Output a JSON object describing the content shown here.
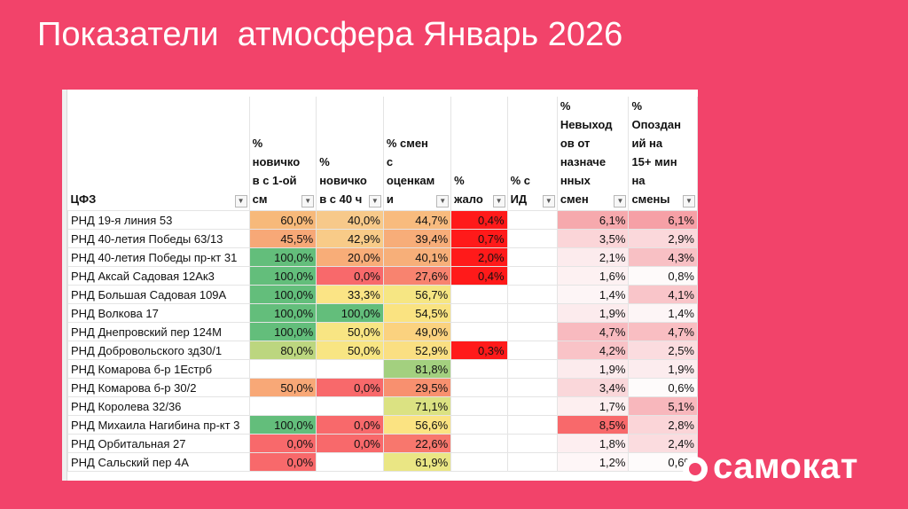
{
  "title": "Показатели  атмосфера Январь 2026",
  "brand": {
    "logo_text": "самокат",
    "bg_color": "#f2436a"
  },
  "table": {
    "headers": [
      "ЦФЗ",
      "% новичко в с 1-ой см",
      "% новичко в с 40 ч",
      "% смен с оценкам и",
      "% жало",
      "% с ИД",
      "% Невыход ов от назначе нных смен",
      "% Опоздан ий на 15+ мин на смены"
    ],
    "rows": [
      {
        "name": "РНД 19-я линия 53",
        "c1": "60,0%",
        "c2": "40,0%",
        "c3": "44,7%",
        "c4": "0,4%",
        "c5": "",
        "c6": "6,1%",
        "c7": "6,1%"
      },
      {
        "name": "РНД 40-летия Победы 63/13",
        "c1": "45,5%",
        "c2": "42,9%",
        "c3": "39,4%",
        "c4": "0,7%",
        "c5": "",
        "c6": "3,5%",
        "c7": "2,9%"
      },
      {
        "name": "РНД 40-летия Победы пр-кт 31",
        "c1": "100,0%",
        "c2": "20,0%",
        "c3": "40,1%",
        "c4": "2,0%",
        "c5": "",
        "c6": "2,1%",
        "c7": "4,3%"
      },
      {
        "name": "РНД Аксай Садовая 12Ак3",
        "c1": "100,0%",
        "c2": "0,0%",
        "c3": "27,6%",
        "c4": "0,4%",
        "c5": "",
        "c6": "1,6%",
        "c7": "0,8%"
      },
      {
        "name": "РНД Большая Садовая 109А",
        "c1": "100,0%",
        "c2": "33,3%",
        "c3": "56,7%",
        "c4": "",
        "c5": "",
        "c6": "1,4%",
        "c7": "4,1%"
      },
      {
        "name": "РНД Волкова 17",
        "c1": "100,0%",
        "c2": "100,0%",
        "c3": "54,5%",
        "c4": "",
        "c5": "",
        "c6": "1,9%",
        "c7": "1,4%"
      },
      {
        "name": "РНД Днепровский пер 124М",
        "c1": "100,0%",
        "c2": "50,0%",
        "c3": "49,0%",
        "c4": "",
        "c5": "",
        "c6": "4,7%",
        "c7": "4,7%"
      },
      {
        "name": "РНД Добровольского зд30/1",
        "c1": "80,0%",
        "c2": "50,0%",
        "c3": "52,9%",
        "c4": "0,3%",
        "c5": "",
        "c6": "4,2%",
        "c7": "2,5%"
      },
      {
        "name": "РНД Комарова б-р 1Естрб",
        "c1": "",
        "c2": "",
        "c3": "81,8%",
        "c4": "",
        "c5": "",
        "c6": "1,9%",
        "c7": "1,9%"
      },
      {
        "name": "РНД Комарова б-р 30/2",
        "c1": "50,0%",
        "c2": "0,0%",
        "c3": "29,5%",
        "c4": "",
        "c5": "",
        "c6": "3,4%",
        "c7": "0,6%"
      },
      {
        "name": "РНД Королева 32/36",
        "c1": "",
        "c2": "",
        "c3": "71,1%",
        "c4": "",
        "c5": "",
        "c6": "1,7%",
        "c7": "5,1%"
      },
      {
        "name": "РНД Михаила Нагибина пр-кт 3",
        "c1": "100,0%",
        "c2": "0,0%",
        "c3": "56,6%",
        "c4": "",
        "c5": "",
        "c6": "8,5%",
        "c7": "2,8%"
      },
      {
        "name": "РНД Орбитальная 27",
        "c1": "0,0%",
        "c2": "0,0%",
        "c3": "22,6%",
        "c4": "",
        "c5": "",
        "c6": "1,8%",
        "c7": "2,4%"
      },
      {
        "name": "РНД Сальский пер 4А",
        "c1": "0,0%",
        "c2": "",
        "c3": "61,9%",
        "c4": "",
        "c5": "",
        "c6": "1,2%",
        "c7": "0,6%"
      }
    ],
    "colors": [
      {
        "c1": "#f7b97a",
        "c2": "#f7c98a",
        "c3": "#f8bb7e",
        "c4": "#ff1a1a",
        "c5": "",
        "c6": "#f6a9ad",
        "c7": "#f6a0a6"
      },
      {
        "c1": "#f7a877",
        "c2": "#f8cb88",
        "c3": "#f7ad79",
        "c4": "#ff1a1a",
        "c5": "",
        "c6": "#fbd5d8",
        "c7": "#fbd8db"
      },
      {
        "c1": "#63be7b",
        "c2": "#f8ad78",
        "c3": "#f7af79",
        "c4": "#ff1a1a",
        "c5": "",
        "c6": "#fcebed",
        "c7": "#f8c0c4"
      },
      {
        "c1": "#63be7b",
        "c2": "#f8696b",
        "c3": "#f8836f",
        "c4": "#ff1a1a",
        "c5": "",
        "c6": "#fdf1f2",
        "c7": "#fefafa"
      },
      {
        "c1": "#63be7b",
        "c2": "#fbe485",
        "c3": "#f6e683",
        "c4": "",
        "c5": "",
        "c6": "#fdf5f6",
        "c7": "#f9c5c9"
      },
      {
        "c1": "#63be7b",
        "c2": "#63be7b",
        "c3": "#fae381",
        "c4": "",
        "c5": "",
        "c6": "#fcebed",
        "c7": "#fdf5f6"
      },
      {
        "c1": "#63be7b",
        "c2": "#f8e583",
        "c3": "#fbd27f",
        "c4": "",
        "c5": "",
        "c6": "#f8babf",
        "c7": "#f9bec2"
      },
      {
        "c1": "#bcd67f",
        "c2": "#f8e583",
        "c3": "#fadf82",
        "c4": "#ff1a1a",
        "c5": "",
        "c6": "#f9c3c7",
        "c7": "#fbdcdf"
      },
      {
        "c1": "",
        "c2": "",
        "c3": "#a3d07f",
        "c4": "",
        "c5": "",
        "c6": "#fcebed",
        "c7": "#fcecee"
      },
      {
        "c1": "#f8a877",
        "c2": "#f8696b",
        "c3": "#f8906f",
        "c4": "",
        "c5": "",
        "c6": "#fad7da",
        "c7": "#fefbfb"
      },
      {
        "c1": "",
        "c2": "",
        "c3": "#dbe282",
        "c4": "",
        "c5": "",
        "c6": "#fdeff0",
        "c7": "#f8b7bc"
      },
      {
        "c1": "#63be7b",
        "c2": "#f8696b",
        "c3": "#fbe382",
        "c4": "",
        "c5": "",
        "c6": "#f8696b",
        "c7": "#fbd5d8"
      },
      {
        "c1": "#f8696b",
        "c2": "#f8696b",
        "c3": "#f8776d",
        "c4": "",
        "c5": "",
        "c6": "#fdeef0",
        "c7": "#fbdcdf"
      },
      {
        "c1": "#f8696b",
        "c2": "",
        "c3": "#eae684",
        "c4": "",
        "c5": "",
        "c6": "#fef6f7",
        "c7": "#fefbfb"
      }
    ]
  }
}
